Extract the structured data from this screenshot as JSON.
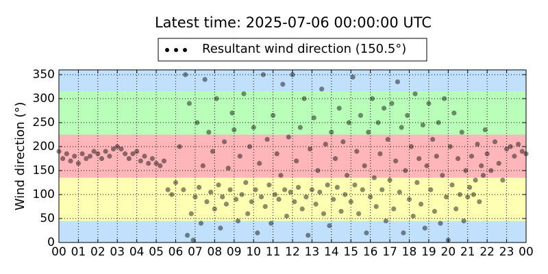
{
  "chart_data": {
    "type": "scatter",
    "title": "Latest time: 2025-07-06 00:00:00 UTC",
    "ylabel": "Wind direction (°)",
    "legend_position": "upper center",
    "grid": true,
    "xlim": [
      0,
      24
    ],
    "ylim": [
      0,
      360
    ],
    "yticks": [
      0,
      50,
      100,
      150,
      200,
      250,
      300,
      350
    ],
    "xticks": [
      {
        "value": 0,
        "label": "00"
      },
      {
        "value": 1,
        "label": "01"
      },
      {
        "value": 2,
        "label": "02"
      },
      {
        "value": 3,
        "label": "03"
      },
      {
        "value": 4,
        "label": "04"
      },
      {
        "value": 5,
        "label": "05"
      },
      {
        "value": 6,
        "label": "06"
      },
      {
        "value": 7,
        "label": "07"
      },
      {
        "value": 8,
        "label": "08"
      },
      {
        "value": 9,
        "label": "09"
      },
      {
        "value": 10,
        "label": "10"
      },
      {
        "value": 11,
        "label": "11"
      },
      {
        "value": 12,
        "label": "12"
      },
      {
        "value": 13,
        "label": "13"
      },
      {
        "value": 14,
        "label": "14"
      },
      {
        "value": 15,
        "label": "15"
      },
      {
        "value": 16,
        "label": "16"
      },
      {
        "value": 17,
        "label": "17"
      },
      {
        "value": 18,
        "label": "18"
      },
      {
        "value": 19,
        "label": "19"
      },
      {
        "value": 20,
        "label": "20"
      },
      {
        "value": 21,
        "label": "21"
      },
      {
        "value": 22,
        "label": "22"
      },
      {
        "value": 23,
        "label": "23"
      },
      {
        "value": 24,
        "label": "00"
      }
    ],
    "bands": [
      {
        "from": 0,
        "to": 45,
        "color": "#c0e0fc"
      },
      {
        "from": 45,
        "to": 135,
        "color": "#ffffb4"
      },
      {
        "from": 135,
        "to": 225,
        "color": "#ffb6ba"
      },
      {
        "from": 225,
        "to": 315,
        "color": "#b9ffb9"
      },
      {
        "from": 315,
        "to": 360,
        "color": "#c0e0fc"
      }
    ],
    "series": [
      {
        "name": "Resultant wind direction (150.5°)",
        "color": "#000000",
        "alpha": 0.45,
        "x": [
          0.0,
          0.2,
          0.4,
          0.6,
          0.8,
          1.0,
          1.2,
          1.4,
          1.6,
          1.8,
          2.0,
          2.2,
          2.4,
          2.6,
          2.8,
          3.0,
          3.2,
          3.4,
          3.6,
          3.8,
          4.0,
          4.2,
          4.4,
          4.6,
          4.8,
          5.0,
          5.2,
          5.4,
          5.6,
          5.8,
          6.0,
          6.2,
          6.4,
          6.5,
          6.6,
          6.7,
          6.8,
          6.9,
          7.0,
          7.1,
          7.2,
          7.3,
          7.4,
          7.5,
          7.6,
          7.7,
          7.8,
          7.9,
          8.0,
          8.1,
          8.2,
          8.3,
          8.4,
          8.5,
          8.6,
          8.7,
          8.8,
          8.9,
          9.0,
          9.1,
          9.2,
          9.3,
          9.4,
          9.5,
          9.6,
          9.7,
          9.8,
          9.9,
          10.0,
          10.1,
          10.2,
          10.3,
          10.4,
          10.5,
          10.6,
          10.7,
          10.8,
          10.9,
          11.0,
          11.1,
          11.2,
          11.3,
          11.4,
          11.5,
          11.6,
          11.7,
          11.8,
          11.9,
          12.0,
          12.1,
          12.2,
          12.3,
          12.4,
          12.5,
          12.6,
          12.7,
          12.8,
          12.9,
          13.0,
          13.1,
          13.2,
          13.3,
          13.4,
          13.5,
          13.6,
          13.7,
          13.8,
          13.9,
          14.0,
          14.1,
          14.2,
          14.3,
          14.4,
          14.5,
          14.6,
          14.7,
          14.8,
          14.9,
          15.0,
          15.1,
          15.2,
          15.3,
          15.4,
          15.5,
          15.6,
          15.7,
          15.8,
          15.9,
          16.0,
          16.1,
          16.2,
          16.3,
          16.4,
          16.5,
          16.6,
          16.7,
          16.8,
          16.9,
          17.0,
          17.1,
          17.2,
          17.3,
          17.4,
          17.5,
          17.6,
          17.7,
          17.8,
          17.9,
          18.0,
          18.1,
          18.2,
          18.3,
          18.4,
          18.5,
          18.6,
          18.7,
          18.8,
          18.9,
          19.0,
          19.1,
          19.2,
          19.3,
          19.4,
          19.5,
          19.6,
          19.7,
          19.8,
          19.9,
          20.0,
          20.1,
          20.2,
          20.3,
          20.4,
          20.5,
          20.6,
          20.7,
          20.8,
          20.9,
          21.0,
          21.1,
          21.2,
          21.3,
          21.4,
          21.5,
          21.6,
          21.7,
          21.8,
          21.9,
          22.0,
          22.2,
          22.4,
          22.6,
          22.8,
          23.0,
          23.2,
          23.4,
          23.6,
          23.8,
          24.0
        ],
        "values": [
          190,
          175,
          185,
          170,
          180,
          165,
          185,
          175,
          180,
          190,
          185,
          175,
          190,
          180,
          195,
          200,
          195,
          185,
          175,
          185,
          190,
          170,
          180,
          165,
          175,
          165,
          160,
          170,
          110,
          100,
          125,
          200,
          110,
          350,
          15,
          290,
          60,
          5,
          95,
          250,
          115,
          40,
          160,
          340,
          85,
          230,
          105,
          190,
          70,
          300,
          120,
          30,
          95,
          210,
          80,
          155,
          110,
          270,
          235,
          90,
          45,
          180,
          100,
          310,
          125,
          60,
          200,
          85,
          240,
          110,
          20,
          165,
          95,
          350,
          75,
          215,
          120,
          40,
          265,
          100,
          185,
          90,
          140,
          330,
          110,
          55,
          220,
          105,
          350,
          85,
          170,
          115,
          240,
          70,
          300,
          95,
          15,
          195,
          110,
          260,
          80,
          150,
          105,
          320,
          60,
          205,
          120,
          35,
          230,
          90,
          175,
          115,
          280,
          65,
          210,
          100,
          140,
          250,
          85,
          345,
          120,
          190,
          60,
          265,
          110,
          160,
          20,
          230,
          95,
          300,
          135,
          75,
          250,
          185,
          110,
          280,
          45,
          215,
          130,
          290,
          70,
          170,
          335,
          105,
          240,
          20,
          150,
          265,
          90,
          200,
          55,
          310,
          125,
          175,
          80,
          245,
          30,
          160,
          290,
          110,
          215,
          65,
          180,
          250,
          40,
          140,
          300,
          95,
          5,
          200,
          120,
          270,
          70,
          175,
          100,
          230,
          45,
          150,
          95,
          115,
          180,
          100,
          130,
          205,
          85,
          160,
          140,
          235,
          185,
          150,
          210,
          165,
          130,
          195,
          200,
          180,
          205,
          190,
          185
        ]
      }
    ]
  }
}
